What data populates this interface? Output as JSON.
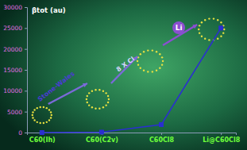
{
  "chart_data": {
    "type": "line",
    "y_label": "βtot (au)",
    "categories": [
      "C60(Ih)",
      "C60(C2v)",
      "C60Cl8",
      "Li@C60Cl8"
    ],
    "values": [
      0,
      100,
      1900,
      25000
    ],
    "color": "#2a2fd0",
    "marker": "square",
    "ylim": [
      0,
      30000
    ],
    "yticks": [
      0,
      5000,
      10000,
      15000,
      20000,
      25000,
      30000
    ],
    "grid": false,
    "annotations": [
      "Stone-Wales",
      "8 X Cl",
      "Li"
    ]
  }
}
